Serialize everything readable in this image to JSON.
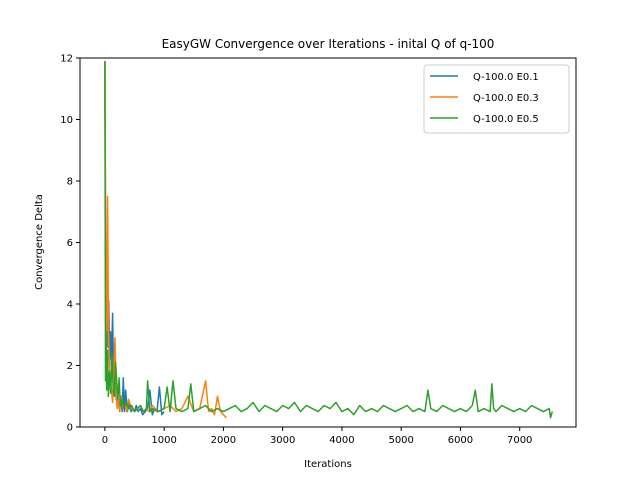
{
  "chart_data": {
    "type": "line",
    "title": "EasyGW Convergence over Iterations - inital Q of q-100",
    "xlabel": "Iterations",
    "ylabel": "Convergence Delta",
    "xlim": [
      -420,
      7950
    ],
    "ylim": [
      0,
      12
    ],
    "xticks": [
      0,
      1000,
      2000,
      3000,
      4000,
      5000,
      6000,
      7000
    ],
    "yticks": [
      0,
      2,
      4,
      6,
      8,
      10,
      12
    ],
    "legend_position": "top-right",
    "grid": false,
    "series": [
      {
        "name": "Q-100.0 E0.1",
        "color": "#1f77b4",
        "x": [
          0,
          10,
          20,
          35,
          50,
          65,
          80,
          95,
          110,
          130,
          150,
          170,
          190,
          210,
          230,
          250,
          270,
          290,
          310,
          330,
          350,
          380,
          410,
          440,
          470,
          500,
          530,
          560,
          600,
          640,
          680,
          720,
          760,
          800,
          840,
          880,
          920,
          960,
          1000
        ],
        "y": [
          11.9,
          6.0,
          4.1,
          3.3,
          2.6,
          4.1,
          2.2,
          3.1,
          2.0,
          3.7,
          1.2,
          2.1,
          0.9,
          1.1,
          0.7,
          0.6,
          1.0,
          0.5,
          1.6,
          0.5,
          1.2,
          0.5,
          0.8,
          0.5,
          0.6,
          0.5,
          0.7,
          0.5,
          0.6,
          0.4,
          0.5,
          0.6,
          1.2,
          0.4,
          0.6,
          0.5,
          1.3,
          0.4,
          0.5
        ]
      },
      {
        "name": "Q-100.0 E0.3",
        "color": "#ff7f0e",
        "x": [
          0,
          10,
          20,
          30,
          45,
          60,
          75,
          90,
          110,
          130,
          150,
          170,
          190,
          210,
          230,
          250,
          280,
          310,
          340,
          370,
          400,
          450,
          500,
          550,
          600,
          650,
          700,
          750,
          800,
          900,
          1000,
          1100,
          1200,
          1300,
          1400,
          1500,
          1600,
          1700,
          1750,
          1800,
          1850,
          1900,
          1950,
          2000,
          2050
        ],
        "y": [
          11.9,
          7.6,
          4.5,
          2.6,
          7.5,
          3.5,
          2.2,
          1.5,
          1.2,
          0.8,
          1.8,
          2.9,
          1.0,
          0.6,
          0.9,
          0.5,
          1.0,
          0.6,
          0.7,
          0.5,
          0.9,
          0.6,
          0.5,
          0.6,
          0.7,
          0.5,
          0.6,
          0.5,
          0.7,
          0.5,
          0.6,
          0.7,
          0.5,
          0.6,
          1.0,
          0.5,
          0.6,
          1.5,
          0.5,
          0.6,
          0.4,
          1.0,
          0.5,
          0.4,
          0.3
        ]
      },
      {
        "name": "Q-100.0 E0.5",
        "color": "#2ca02c",
        "x": [
          0,
          10,
          20,
          30,
          45,
          60,
          80,
          100,
          120,
          140,
          160,
          180,
          200,
          220,
          240,
          260,
          290,
          320,
          360,
          400,
          450,
          500,
          550,
          600,
          650,
          700,
          720,
          760,
          800,
          900,
          1000,
          1050,
          1100,
          1150,
          1200,
          1300,
          1400,
          1450,
          1500,
          1600,
          1700,
          1800,
          1900,
          2000,
          2100,
          2200,
          2300,
          2400,
          2500,
          2600,
          2700,
          2800,
          2900,
          3000,
          3100,
          3200,
          3300,
          3400,
          3500,
          3600,
          3700,
          3800,
          3900,
          4000,
          4100,
          4200,
          4300,
          4400,
          4500,
          4600,
          4700,
          4800,
          4900,
          5000,
          5100,
          5200,
          5300,
          5400,
          5450,
          5500,
          5600,
          5700,
          5800,
          5900,
          6000,
          6100,
          6200,
          6250,
          6300,
          6400,
          6500,
          6530,
          6560,
          6600,
          6700,
          6800,
          6900,
          7000,
          7100,
          7200,
          7300,
          7400,
          7500,
          7520,
          7550
        ],
        "y": [
          11.9,
          1.5,
          3.1,
          1.2,
          2.5,
          1.0,
          1.8,
          1.1,
          2.4,
          1.2,
          1.0,
          2.1,
          1.5,
          0.9,
          1.6,
          0.7,
          0.9,
          0.6,
          0.8,
          0.6,
          0.7,
          0.5,
          0.6,
          0.7,
          0.5,
          0.6,
          1.5,
          0.5,
          0.6,
          0.5,
          0.6,
          1.3,
          0.5,
          1.5,
          0.6,
          0.5,
          0.6,
          1.4,
          0.5,
          0.6,
          0.7,
          0.5,
          0.6,
          0.5,
          0.6,
          0.7,
          0.5,
          0.6,
          0.8,
          0.5,
          0.7,
          0.6,
          0.5,
          0.7,
          0.6,
          0.8,
          0.5,
          0.7,
          0.6,
          0.5,
          0.7,
          0.6,
          0.8,
          0.5,
          0.6,
          0.4,
          0.7,
          0.5,
          0.6,
          0.5,
          0.7,
          0.6,
          0.5,
          0.6,
          0.7,
          0.5,
          0.6,
          0.5,
          1.2,
          0.6,
          0.5,
          0.7,
          0.6,
          0.5,
          0.6,
          0.5,
          0.7,
          1.2,
          0.5,
          0.6,
          0.5,
          1.4,
          0.6,
          0.5,
          0.7,
          0.6,
          0.5,
          0.6,
          0.5,
          0.7,
          0.6,
          0.5,
          0.6,
          0.3,
          0.5
        ]
      }
    ]
  }
}
